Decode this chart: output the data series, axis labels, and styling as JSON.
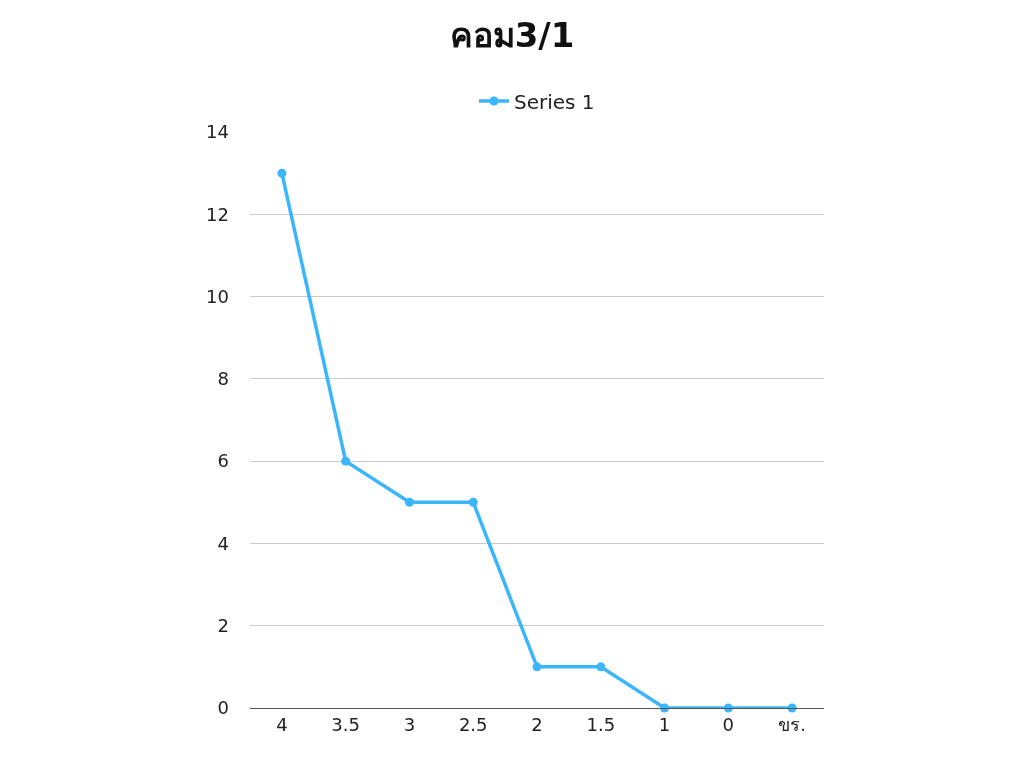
{
  "chart_data": {
    "type": "line",
    "title": "คอม3/1",
    "categories": [
      "4",
      "3.5",
      "3",
      "2.5",
      "2",
      "1.5",
      "1",
      "0",
      "ขร."
    ],
    "series": [
      {
        "name": "Series 1",
        "color": "#3bb5fb",
        "values": [
          13,
          6,
          5,
          5,
          1,
          1,
          0,
          0,
          0
        ]
      }
    ],
    "ylim": [
      0,
      14
    ],
    "yticks": [
      0,
      2,
      4,
      6,
      8,
      10,
      12,
      14
    ],
    "grid": "y",
    "legend": "top",
    "marker": "circle",
    "line_style": "solid"
  }
}
